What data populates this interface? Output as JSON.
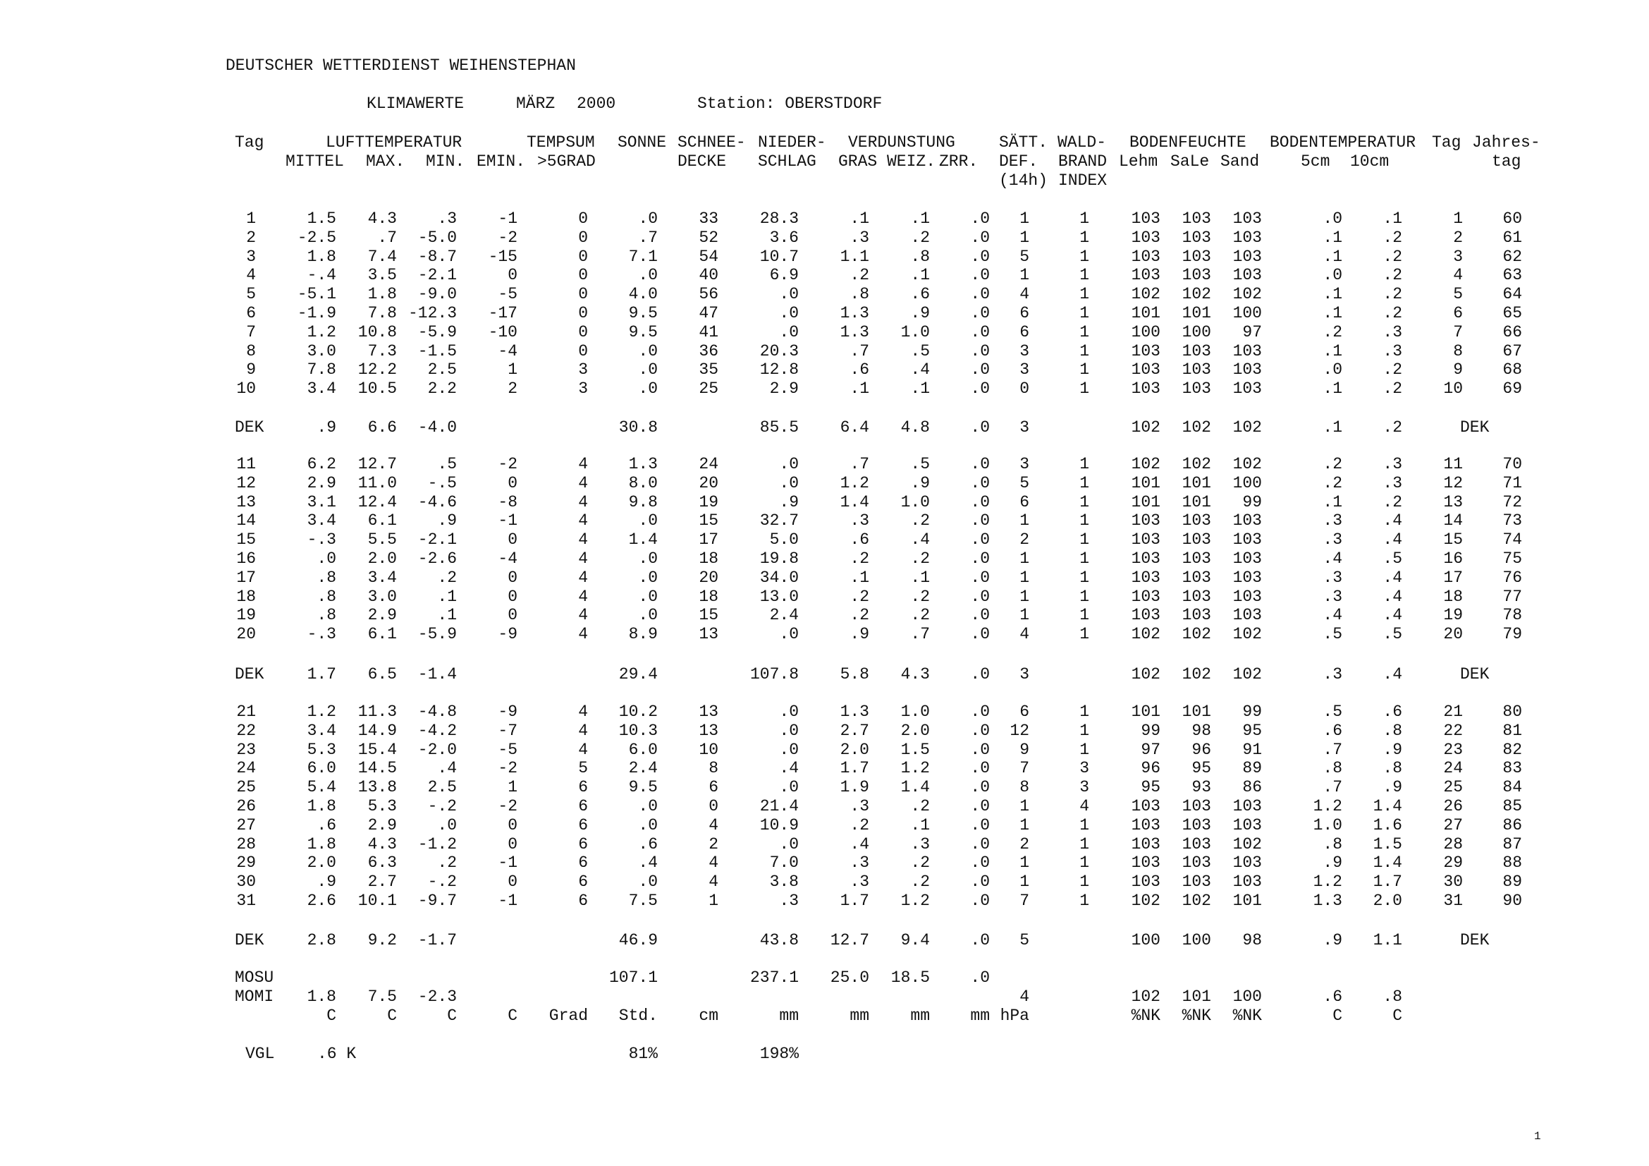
{
  "org": "DEUTSCHER WETTERDIENST WEIHENSTEPHAN",
  "subtitle": {
    "kind": "KLIMAWERTE",
    "month": "MÄRZ",
    "year": "2000",
    "station": "Station: OBERSTDORF"
  },
  "header": {
    "line1": [
      "Tag",
      "LUFTTEMPERATUR",
      "TEMPSUM",
      "SONNE",
      "SCHNEE-",
      "NIEDER-",
      "VERDUNSTUNG",
      "SÄTT.",
      "WALD-",
      "BODENFEUCHTE",
      "BODENTEMPERATUR",
      "Tag",
      "Jahres-"
    ],
    "line2": [
      "MITTEL",
      "MAX.",
      "MIN.",
      "EMIN.",
      ">5GRAD",
      "DECKE",
      "SCHLAG",
      "GRAS",
      "WEIZ.",
      "ZRR.",
      "DEF.",
      "BRAND",
      "Lehm",
      "SaLe",
      "Sand",
      "5cm",
      "10cm",
      "tag"
    ],
    "line3": [
      "(14h)",
      "INDEX"
    ]
  },
  "rows": [
    [
      "1",
      "1.5",
      "4.3",
      ".3",
      "-1",
      "0",
      ".0",
      "33",
      "28.3",
      ".1",
      ".1",
      ".0",
      "1",
      "1",
      "103",
      "103",
      "103",
      ".0",
      ".1",
      "1",
      "60"
    ],
    [
      "2",
      "-2.5",
      ".7",
      "-5.0",
      "-2",
      "0",
      ".7",
      "52",
      "3.6",
      ".3",
      ".2",
      ".0",
      "1",
      "1",
      "103",
      "103",
      "103",
      ".1",
      ".2",
      "2",
      "61"
    ],
    [
      "3",
      "1.8",
      "7.4",
      "-8.7",
      "-15",
      "0",
      "7.1",
      "54",
      "10.7",
      "1.1",
      ".8",
      ".0",
      "5",
      "1",
      "103",
      "103",
      "103",
      ".1",
      ".2",
      "3",
      "62"
    ],
    [
      "4",
      "-.4",
      "3.5",
      "-2.1",
      "0",
      "0",
      ".0",
      "40",
      "6.9",
      ".2",
      ".1",
      ".0",
      "1",
      "1",
      "103",
      "103",
      "103",
      ".0",
      ".2",
      "4",
      "63"
    ],
    [
      "5",
      "-5.1",
      "1.8",
      "-9.0",
      "-5",
      "0",
      "4.0",
      "56",
      ".0",
      ".8",
      ".6",
      ".0",
      "4",
      "1",
      "102",
      "102",
      "102",
      ".1",
      ".2",
      "5",
      "64"
    ],
    [
      "6",
      "-1.9",
      "7.8",
      "-12.3",
      "-17",
      "0",
      "9.5",
      "47",
      ".0",
      "1.3",
      ".9",
      ".0",
      "6",
      "1",
      "101",
      "101",
      "100",
      ".1",
      ".2",
      "6",
      "65"
    ],
    [
      "7",
      "1.2",
      "10.8",
      "-5.9",
      "-10",
      "0",
      "9.5",
      "41",
      ".0",
      "1.3",
      "1.0",
      ".0",
      "6",
      "1",
      "100",
      "100",
      "97",
      ".2",
      ".3",
      "7",
      "66"
    ],
    [
      "8",
      "3.0",
      "7.3",
      "-1.5",
      "-4",
      "0",
      ".0",
      "36",
      "20.3",
      ".7",
      ".5",
      ".0",
      "3",
      "1",
      "103",
      "103",
      "103",
      ".1",
      ".3",
      "8",
      "67"
    ],
    [
      "9",
      "7.8",
      "12.2",
      "2.5",
      "1",
      "3",
      ".0",
      "35",
      "12.8",
      ".6",
      ".4",
      ".0",
      "3",
      "1",
      "103",
      "103",
      "103",
      ".0",
      ".2",
      "9",
      "68"
    ],
    [
      "10",
      "3.4",
      "10.5",
      "2.2",
      "2",
      "3",
      ".0",
      "25",
      "2.9",
      ".1",
      ".1",
      ".0",
      "0",
      "1",
      "103",
      "103",
      "103",
      ".1",
      ".2",
      "10",
      "69"
    ],
    [
      "DEK",
      ".9",
      "6.6",
      "-4.0",
      "",
      "",
      "30.8",
      "",
      "85.5",
      "6.4",
      "4.8",
      ".0",
      "3",
      "",
      "102",
      "102",
      "102",
      ".1",
      ".2",
      "",
      "DEK"
    ],
    [
      "11",
      "6.2",
      "12.7",
      ".5",
      "-2",
      "4",
      "1.3",
      "24",
      ".0",
      ".7",
      ".5",
      ".0",
      "3",
      "1",
      "102",
      "102",
      "102",
      ".2",
      ".3",
      "11",
      "70"
    ],
    [
      "12",
      "2.9",
      "11.0",
      "-.5",
      "0",
      "4",
      "8.0",
      "20",
      ".0",
      "1.2",
      ".9",
      ".0",
      "5",
      "1",
      "101",
      "101",
      "100",
      ".2",
      ".3",
      "12",
      "71"
    ],
    [
      "13",
      "3.1",
      "12.4",
      "-4.6",
      "-8",
      "4",
      "9.8",
      "19",
      ".9",
      "1.4",
      "1.0",
      ".0",
      "6",
      "1",
      "101",
      "101",
      "99",
      ".1",
      ".2",
      "13",
      "72"
    ],
    [
      "14",
      "3.4",
      "6.1",
      ".9",
      "-1",
      "4",
      ".0",
      "15",
      "32.7",
      ".3",
      ".2",
      ".0",
      "1",
      "1",
      "103",
      "103",
      "103",
      ".3",
      ".4",
      "14",
      "73"
    ],
    [
      "15",
      "-.3",
      "5.5",
      "-2.1",
      "0",
      "4",
      "1.4",
      "17",
      "5.0",
      ".6",
      ".4",
      ".0",
      "2",
      "1",
      "103",
      "103",
      "103",
      ".3",
      ".4",
      "15",
      "74"
    ],
    [
      "16",
      ".0",
      "2.0",
      "-2.6",
      "-4",
      "4",
      ".0",
      "18",
      "19.8",
      ".2",
      ".2",
      ".0",
      "1",
      "1",
      "103",
      "103",
      "103",
      ".4",
      ".5",
      "16",
      "75"
    ],
    [
      "17",
      ".8",
      "3.4",
      ".2",
      "0",
      "4",
      ".0",
      "20",
      "34.0",
      ".1",
      ".1",
      ".0",
      "1",
      "1",
      "103",
      "103",
      "103",
      ".3",
      ".4",
      "17",
      "76"
    ],
    [
      "18",
      ".8",
      "3.0",
      ".1",
      "0",
      "4",
      ".0",
      "18",
      "13.0",
      ".2",
      ".2",
      ".0",
      "1",
      "1",
      "103",
      "103",
      "103",
      ".3",
      ".4",
      "18",
      "77"
    ],
    [
      "19",
      ".8",
      "2.9",
      ".1",
      "0",
      "4",
      ".0",
      "15",
      "2.4",
      ".2",
      ".2",
      ".0",
      "1",
      "1",
      "103",
      "103",
      "103",
      ".4",
      ".4",
      "19",
      "78"
    ],
    [
      "20",
      "-.3",
      "6.1",
      "-5.9",
      "-9",
      "4",
      "8.9",
      "13",
      ".0",
      ".9",
      ".7",
      ".0",
      "4",
      "1",
      "102",
      "102",
      "102",
      ".5",
      ".5",
      "20",
      "79"
    ],
    [
      "DEK",
      "1.7",
      "6.5",
      "-1.4",
      "",
      "",
      "29.4",
      "",
      "107.8",
      "5.8",
      "4.3",
      ".0",
      "3",
      "",
      "102",
      "102",
      "102",
      ".3",
      ".4",
      "",
      "DEK"
    ],
    [
      "21",
      "1.2",
      "11.3",
      "-4.8",
      "-9",
      "4",
      "10.2",
      "13",
      ".0",
      "1.3",
      "1.0",
      ".0",
      "6",
      "1",
      "101",
      "101",
      "99",
      ".5",
      ".6",
      "21",
      "80"
    ],
    [
      "22",
      "3.4",
      "14.9",
      "-4.2",
      "-7",
      "4",
      "10.3",
      "13",
      ".0",
      "2.7",
      "2.0",
      ".0",
      "12",
      "1",
      "99",
      "98",
      "95",
      ".6",
      ".8",
      "22",
      "81"
    ],
    [
      "23",
      "5.3",
      "15.4",
      "-2.0",
      "-5",
      "4",
      "6.0",
      "10",
      ".0",
      "2.0",
      "1.5",
      ".0",
      "9",
      "1",
      "97",
      "96",
      "91",
      ".7",
      ".9",
      "23",
      "82"
    ],
    [
      "24",
      "6.0",
      "14.5",
      ".4",
      "-2",
      "5",
      "2.4",
      "8",
      ".4",
      "1.7",
      "1.2",
      ".0",
      "7",
      "3",
      "96",
      "95",
      "89",
      ".8",
      ".8",
      "24",
      "83"
    ],
    [
      "25",
      "5.4",
      "13.8",
      "2.5",
      "1",
      "6",
      "9.5",
      "6",
      ".0",
      "1.9",
      "1.4",
      ".0",
      "8",
      "3",
      "95",
      "93",
      "86",
      ".7",
      ".9",
      "25",
      "84"
    ],
    [
      "26",
      "1.8",
      "5.3",
      "-.2",
      "-2",
      "6",
      ".0",
      "0",
      "21.4",
      ".3",
      ".2",
      ".0",
      "1",
      "4",
      "103",
      "103",
      "103",
      "1.2",
      "1.4",
      "26",
      "85"
    ],
    [
      "27",
      ".6",
      "2.9",
      ".0",
      "0",
      "6",
      ".0",
      "4",
      "10.9",
      ".2",
      ".1",
      ".0",
      "1",
      "1",
      "103",
      "103",
      "103",
      "1.0",
      "1.6",
      "27",
      "86"
    ],
    [
      "28",
      "1.8",
      "4.3",
      "-1.2",
      "0",
      "6",
      ".6",
      "2",
      ".0",
      ".4",
      ".3",
      ".0",
      "2",
      "1",
      "103",
      "103",
      "102",
      ".8",
      "1.5",
      "28",
      "87"
    ],
    [
      "29",
      "2.0",
      "6.3",
      ".2",
      "-1",
      "6",
      ".4",
      "4",
      "7.0",
      ".3",
      ".2",
      ".0",
      "1",
      "1",
      "103",
      "103",
      "103",
      ".9",
      "1.4",
      "29",
      "88"
    ],
    [
      "30",
      ".9",
      "2.7",
      "-.2",
      "0",
      "6",
      ".0",
      "4",
      "3.8",
      ".3",
      ".2",
      ".0",
      "1",
      "1",
      "103",
      "103",
      "103",
      "1.2",
      "1.7",
      "30",
      "89"
    ],
    [
      "31",
      "2.6",
      "10.1",
      "-9.7",
      "-1",
      "6",
      "7.5",
      "1",
      ".3",
      "1.7",
      "1.2",
      ".0",
      "7",
      "1",
      "102",
      "102",
      "101",
      "1.3",
      "2.0",
      "31",
      "90"
    ],
    [
      "DEK",
      "2.8",
      "9.2",
      "-1.7",
      "",
      "",
      "46.9",
      "",
      "43.8",
      "12.7",
      "9.4",
      ".0",
      "5",
      "",
      "100",
      "100",
      "98",
      ".9",
      "1.1",
      "",
      "DEK"
    ],
    [
      "MOSU",
      "",
      "",
      "",
      "",
      "",
      "107.1",
      "",
      "237.1",
      "25.0",
      "18.5",
      ".0",
      "",
      "",
      "",
      "",
      "",
      "",
      "",
      "",
      ""
    ],
    [
      "MOMI",
      "1.8",
      "7.5",
      "-2.3",
      "",
      "",
      "",
      "",
      "",
      "",
      "",
      "",
      "4",
      "",
      "102",
      "101",
      "100",
      ".6",
      ".8",
      "",
      ""
    ],
    [
      "",
      "C",
      "C",
      "C",
      "C",
      "Grad",
      "Std.",
      "cm",
      "mm",
      "mm",
      "mm",
      "mm",
      "hPa",
      "",
      "%NK",
      "%NK",
      "%NK",
      "C",
      "C",
      "",
      ""
    ],
    [
      "VGL",
      ".6 K",
      "",
      "",
      "",
      "",
      "81%",
      "",
      "198%",
      "",
      "",
      "",
      "",
      "",
      "",
      "",
      "",
      "",
      "",
      "",
      ""
    ]
  ],
  "page_number": "1"
}
